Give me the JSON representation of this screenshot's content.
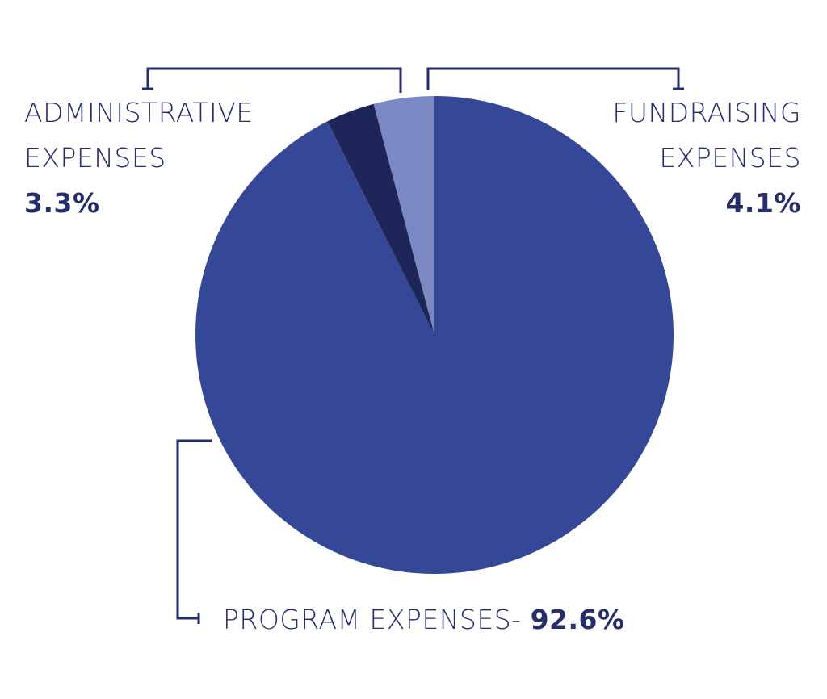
{
  "chart_data": {
    "type": "pie",
    "slices": [
      {
        "label": "FUNDRAISING EXPENSES",
        "label_line1": "FUNDRAISING",
        "label_line2": "EXPENSES",
        "value": 4.1,
        "value_label": "4.1%",
        "color": "#7a88c4"
      },
      {
        "label": "ADMINISTRATIVE EXPENSES",
        "label_line1": "ADMINISTRATIVE",
        "label_line2": "EXPENSES",
        "value": 3.3,
        "value_label": "3.3%",
        "color": "#1e2558"
      },
      {
        "label": "PROGRAM EXPENSES",
        "label_line1": "PROGRAM EXPENSES-",
        "value": 92.6,
        "value_label": "92.6%",
        "color": "#344897"
      }
    ],
    "text_color": "#262d6b",
    "legend": "none"
  }
}
